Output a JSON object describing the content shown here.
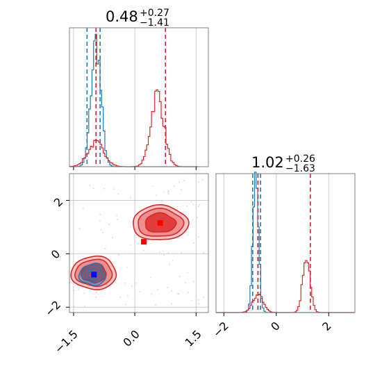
{
  "colors": {
    "blue": "#1f77b4",
    "red": "#d62728",
    "grid": "#cccccc",
    "axes": "#808080",
    "marker_blue": "#0000ff",
    "marker_red": "#ff0000",
    "fill_red_outer": "#f6c6c6",
    "fill_red_mid": "#ee8f8f",
    "fill_red_inner": "#e03d3d"
  },
  "titles": {
    "p0": {
      "main": "0.48",
      "sup": "+0.27",
      "sub": "−1.41"
    },
    "p1": {
      "main": "1.02",
      "sup": "+0.26",
      "sub": "−1.63"
    }
  },
  "chart_data": {
    "type": "corner",
    "parameters": 2,
    "grid": true,
    "x_range": [
      -1.6,
      1.8
    ],
    "y_range": [
      -2.2,
      3.0
    ],
    "x_ticks": [
      -1.5,
      0.0,
      1.5
    ],
    "x_tick_labels": [
      "−1.5",
      "0.0",
      "1.5"
    ],
    "y_ticks": [
      -2,
      0,
      2
    ],
    "y_tick_labels": [
      "−2",
      "0",
      "2"
    ],
    "y_hist_ticks": [
      -2,
      0,
      2
    ],
    "y_hist_tick_labels": [
      "−2",
      "0",
      "2"
    ],
    "histograms": [
      {
        "parameter": 0,
        "series": [
          {
            "color": "blue",
            "peaks": [
              {
                "center": -0.95,
                "sigma": 0.12,
                "height": 1.0
              }
            ],
            "quantiles": [
              -1.17,
              -0.95,
              -0.85
            ]
          },
          {
            "color": "red",
            "peaks": [
              {
                "center": -0.95,
                "sigma": 0.2,
                "height": 0.19
              },
              {
                "center": 0.55,
                "sigma": 0.16,
                "height": 0.58
              }
            ],
            "quantiles": [
              -0.95,
              0.75
            ]
          }
        ]
      },
      {
        "parameter": 1,
        "series": [
          {
            "color": "blue",
            "peaks": [
              {
                "center": -0.78,
                "sigma": 0.11,
                "height": 1.0
              }
            ],
            "quantiles": [
              -0.9,
              -0.7,
              -0.6
            ]
          },
          {
            "color": "red",
            "peaks": [
              {
                "center": -0.7,
                "sigma": 0.2,
                "height": 0.14
              },
              {
                "center": 1.15,
                "sigma": 0.14,
                "height": 0.47
              }
            ],
            "quantiles": [
              -0.7,
              1.3
            ]
          }
        ]
      }
    ],
    "joint": {
      "red_modes": [
        {
          "cx": -1.0,
          "cy": -0.72,
          "rx": 0.55,
          "ry": 0.62
        },
        {
          "cx": 0.62,
          "cy": 1.15,
          "rx": 0.68,
          "ry": 0.65
        }
      ],
      "blue_mode": {
        "cx": -1.03,
        "cy": -0.78,
        "rx": 0.32,
        "ry": 0.4
      },
      "markers": [
        {
          "color": "marker_red",
          "x": 0.62,
          "y": 1.15
        },
        {
          "color": "marker_red",
          "x": 0.22,
          "y": 0.45
        },
        {
          "color": "marker_blue",
          "x": -1.0,
          "y": -0.78
        }
      ]
    }
  }
}
